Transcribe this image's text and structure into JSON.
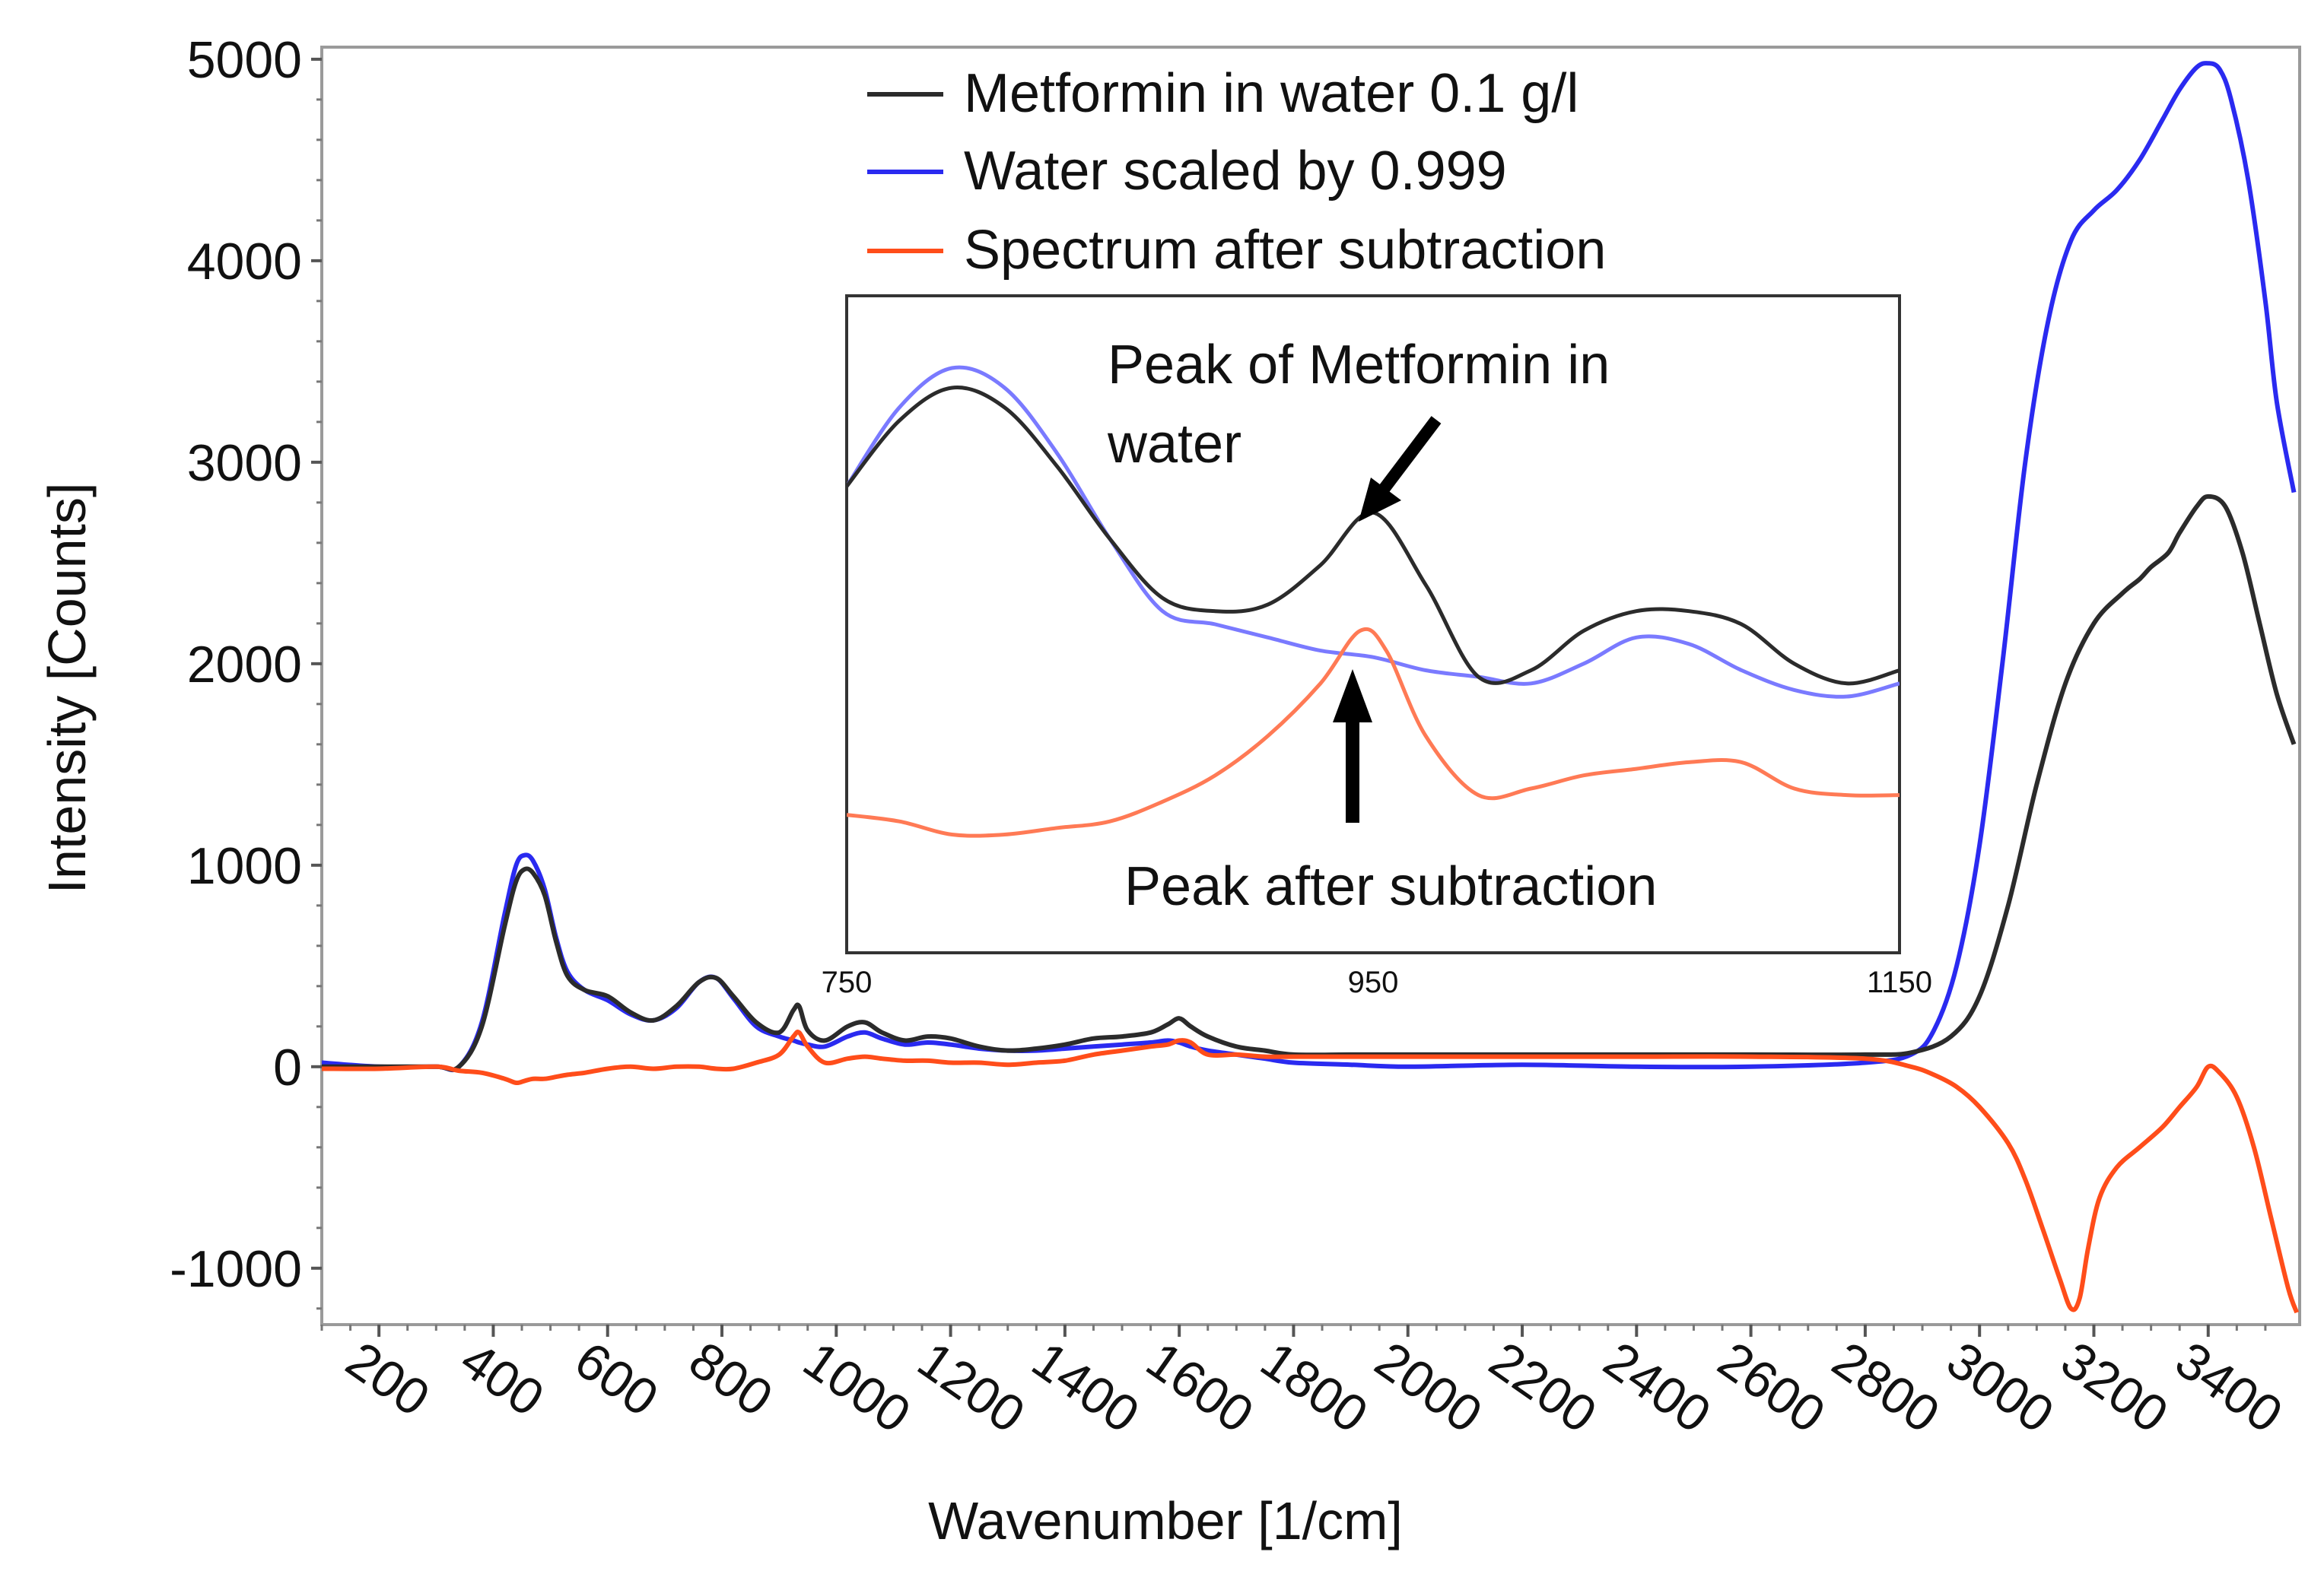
{
  "colors": {
    "metformin": "#2b2b2b",
    "water": "#2a2af0",
    "subtraction": "#ff4d1a",
    "inset_water": "#7a7aff",
    "inset_subtraction": "#ff7a55",
    "frame": "#9a9a9a",
    "inset_frame": "#333333"
  },
  "chart_data": [
    {
      "type": "line",
      "title": "",
      "xlabel": "Wavenumber [1/cm]",
      "ylabel": "Intensity [Counts]",
      "xlim": [
        100,
        3560
      ],
      "ylim": [
        -1280,
        5060
      ],
      "x_ticks": [
        "200",
        "400",
        "600",
        "800",
        "1000",
        "1200",
        "1400",
        "1600",
        "1800",
        "2000",
        "2200",
        "2400",
        "2600",
        "2800",
        "3000",
        "3200",
        "3400"
      ],
      "x_tick_values": [
        200,
        400,
        600,
        800,
        1000,
        1200,
        1400,
        1600,
        1800,
        2000,
        2200,
        2400,
        2600,
        2800,
        3000,
        3200,
        3400
      ],
      "y_ticks": [
        "5000",
        "4000",
        "3000",
        "2000",
        "1000",
        "0",
        "-1000"
      ],
      "y_tick_values": [
        5000,
        4000,
        3000,
        2000,
        1000,
        0,
        -1000
      ],
      "legend_position": "top-center",
      "series": [
        {
          "name": "Metformin in water 0.1 g/l",
          "color": "#2b2b2b",
          "x": [
            100,
            200,
            300,
            340,
            380,
            420,
            440,
            455,
            470,
            490,
            510,
            530,
            560,
            600,
            640,
            680,
            720,
            760,
            790,
            820,
            860,
            900,
            925,
            935,
            950,
            980,
            1020,
            1050,
            1080,
            1120,
            1160,
            1200,
            1250,
            1300,
            1350,
            1400,
            1450,
            1500,
            1550,
            1580,
            1600,
            1620,
            1650,
            1700,
            1750,
            1800,
            1900,
            2000,
            2200,
            2400,
            2600,
            2800,
            2880,
            2950,
            3000,
            3050,
            3100,
            3150,
            3200,
            3250,
            3280,
            3300,
            3330,
            3350,
            3380,
            3400,
            3430,
            3460,
            3490,
            3520,
            3550
          ],
          "y": [
            0,
            0,
            0,
            0,
            200,
            700,
            920,
            980,
            960,
            850,
            620,
            450,
            380,
            350,
            270,
            230,
            300,
            420,
            440,
            350,
            220,
            170,
            280,
            300,
            180,
            130,
            200,
            220,
            170,
            130,
            150,
            140,
            100,
            80,
            90,
            110,
            140,
            150,
            170,
            210,
            240,
            200,
            150,
            100,
            80,
            60,
            60,
            60,
            60,
            60,
            60,
            60,
            70,
            150,
            350,
            800,
            1400,
            1900,
            2200,
            2350,
            2420,
            2480,
            2550,
            2650,
            2780,
            2830,
            2780,
            2550,
            2200,
            1850,
            1600
          ]
        },
        {
          "name": "Water scaled by 0.999",
          "color": "#2a2af0",
          "x": [
            100,
            200,
            300,
            340,
            380,
            420,
            440,
            455,
            470,
            490,
            510,
            530,
            560,
            600,
            640,
            680,
            720,
            760,
            790,
            820,
            860,
            900,
            925,
            935,
            950,
            980,
            1020,
            1050,
            1080,
            1120,
            1160,
            1200,
            1250,
            1300,
            1350,
            1400,
            1450,
            1500,
            1550,
            1580,
            1600,
            1620,
            1650,
            1700,
            1750,
            1800,
            1900,
            2000,
            2200,
            2400,
            2600,
            2800,
            2880,
            2920,
            2960,
            3000,
            3040,
            3080,
            3120,
            3160,
            3200,
            3240,
            3280,
            3320,
            3350,
            3380,
            3400,
            3420,
            3440,
            3470,
            3500,
            3520,
            3550
          ],
          "y": [
            20,
            0,
            0,
            0,
            220,
            760,
            1000,
            1050,
            1020,
            880,
            640,
            470,
            380,
            330,
            260,
            230,
            290,
            420,
            440,
            340,
            200,
            150,
            130,
            120,
            110,
            100,
            150,
            170,
            140,
            110,
            120,
            110,
            90,
            80,
            80,
            90,
            100,
            110,
            120,
            130,
            120,
            100,
            80,
            60,
            40,
            20,
            10,
            0,
            10,
            0,
            0,
            20,
            60,
            180,
            500,
            1100,
            2000,
            3000,
            3700,
            4100,
            4250,
            4350,
            4500,
            4700,
            4850,
            4960,
            4980,
            4950,
            4800,
            4400,
            3800,
            3300,
            2850
          ]
        },
        {
          "name": "Spectrum after subtraction",
          "color": "#ff4d1a",
          "x": [
            100,
            200,
            300,
            340,
            380,
            420,
            440,
            455,
            470,
            490,
            510,
            530,
            560,
            600,
            640,
            680,
            720,
            760,
            790,
            820,
            860,
            900,
            925,
            935,
            950,
            980,
            1020,
            1050,
            1080,
            1120,
            1160,
            1200,
            1250,
            1300,
            1350,
            1400,
            1450,
            1500,
            1550,
            1580,
            1600,
            1620,
            1650,
            1700,
            1750,
            1800,
            1900,
            2000,
            2200,
            2400,
            2600,
            2800,
            2880,
            2920,
            2960,
            3000,
            3050,
            3080,
            3110,
            3140,
            3160,
            3175,
            3190,
            3210,
            3240,
            3280,
            3320,
            3350,
            3380,
            3400,
            3420,
            3450,
            3480,
            3510,
            3540,
            3555
          ],
          "y": [
            -10,
            -10,
            0,
            -20,
            -30,
            -60,
            -80,
            -70,
            -60,
            -60,
            -50,
            -40,
            -30,
            -10,
            0,
            -10,
            0,
            0,
            -10,
            -10,
            20,
            60,
            150,
            170,
            100,
            20,
            40,
            50,
            40,
            30,
            30,
            20,
            20,
            10,
            20,
            30,
            60,
            80,
            100,
            110,
            130,
            120,
            60,
            60,
            50,
            50,
            50,
            50,
            50,
            50,
            50,
            40,
            0,
            -40,
            -100,
            -200,
            -380,
            -560,
            -800,
            -1050,
            -1200,
            -1150,
            -900,
            -650,
            -500,
            -400,
            -300,
            -200,
            -100,
            0,
            -30,
            -150,
            -400,
            -750,
            -1100,
            -1220
          ]
        }
      ]
    },
    {
      "type": "line",
      "title": "",
      "xlabel": "",
      "ylabel": "",
      "xlim": [
        750,
        1150
      ],
      "ylim": [
        0,
        1
      ],
      "x_ticks": [
        "750",
        "950",
        "1150"
      ],
      "x_tick_values": [
        750,
        950,
        1150
      ],
      "annotations": [
        "Peak of Metformin in water",
        "Peak after subtraction"
      ],
      "series": [
        {
          "name": "Metformin in water 0.1 g/l",
          "color": "#2b2b2b",
          "x": [
            750,
            770,
            790,
            810,
            830,
            850,
            870,
            890,
            910,
            930,
            950,
            970,
            990,
            1010,
            1030,
            1050,
            1070,
            1090,
            1110,
            1130,
            1150
          ],
          "y": [
            0.71,
            0.81,
            0.86,
            0.83,
            0.74,
            0.63,
            0.54,
            0.52,
            0.53,
            0.59,
            0.67,
            0.56,
            0.42,
            0.43,
            0.49,
            0.52,
            0.52,
            0.5,
            0.44,
            0.41,
            0.43
          ]
        },
        {
          "name": "Water scaled by 0.999",
          "color": "#7a7aff",
          "x": [
            750,
            770,
            790,
            810,
            830,
            850,
            870,
            890,
            910,
            930,
            950,
            970,
            990,
            1010,
            1030,
            1050,
            1070,
            1090,
            1110,
            1130,
            1150
          ],
          "y": [
            0.71,
            0.83,
            0.89,
            0.86,
            0.76,
            0.63,
            0.52,
            0.5,
            0.48,
            0.46,
            0.45,
            0.43,
            0.42,
            0.41,
            0.44,
            0.48,
            0.47,
            0.43,
            0.4,
            0.39,
            0.41
          ]
        },
        {
          "name": "Spectrum after subtraction",
          "color": "#ff7a55",
          "x": [
            750,
            770,
            790,
            810,
            830,
            850,
            870,
            890,
            910,
            930,
            945,
            955,
            970,
            990,
            1010,
            1030,
            1050,
            1070,
            1090,
            1110,
            1130,
            1150
          ],
          "y": [
            0.21,
            0.2,
            0.18,
            0.18,
            0.19,
            0.2,
            0.23,
            0.27,
            0.33,
            0.41,
            0.49,
            0.46,
            0.33,
            0.24,
            0.25,
            0.27,
            0.28,
            0.29,
            0.29,
            0.25,
            0.24,
            0.24
          ]
        }
      ]
    }
  ],
  "legend": {
    "items": [
      "Metformin in water 0.1 g/l",
      "Water scaled by 0.999",
      "Spectrum after subtraction"
    ]
  },
  "inset": {
    "annotation_top": "Peak of Metformin in water",
    "annotation_top_line1": "Peak of Metformin in",
    "annotation_top_line2": "water",
    "annotation_bottom": "Peak after subtraction"
  }
}
